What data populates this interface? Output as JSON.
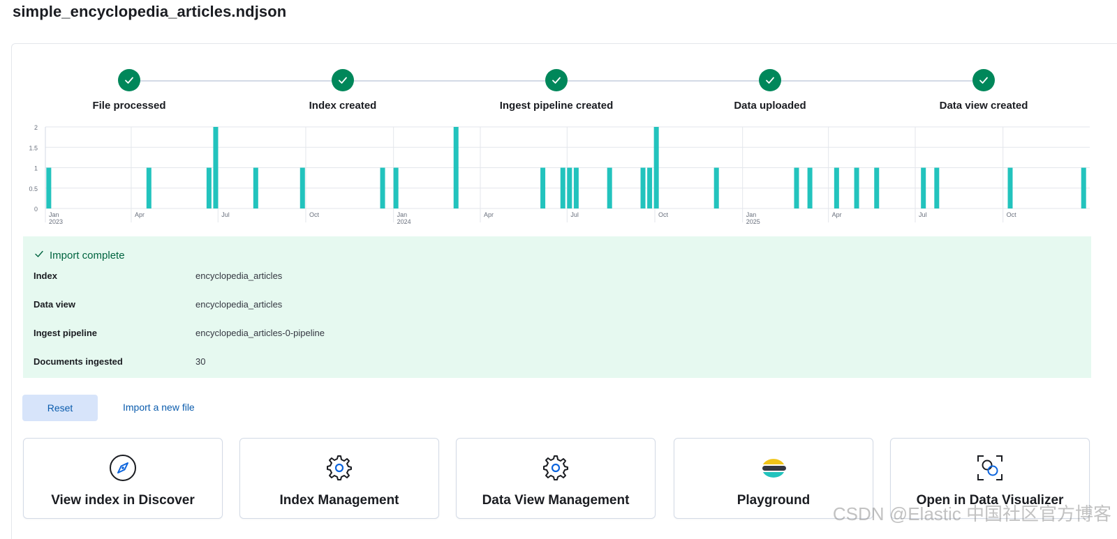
{
  "page_title": "simple_encyclopedia_articles.ndjson",
  "steps": [
    {
      "label": "File processed",
      "status": "complete"
    },
    {
      "label": "Index created",
      "status": "complete"
    },
    {
      "label": "Ingest pipeline created",
      "status": "complete"
    },
    {
      "label": "Data uploaded",
      "status": "complete"
    },
    {
      "label": "Data view created",
      "status": "complete"
    }
  ],
  "chart_data": {
    "type": "bar",
    "x_range": [
      "2023-01-01",
      "2025-12-31"
    ],
    "ylim": [
      0,
      2
    ],
    "y_ticks": [
      "0",
      "0.5",
      "1",
      "1.5",
      "2"
    ],
    "x_ticks": [
      {
        "date": "2023-01-01",
        "label": "Jan",
        "year": "2023"
      },
      {
        "date": "2023-04-01",
        "label": "Apr",
        "year": ""
      },
      {
        "date": "2023-07-01",
        "label": "Jul",
        "year": ""
      },
      {
        "date": "2023-10-01",
        "label": "Oct",
        "year": ""
      },
      {
        "date": "2024-01-01",
        "label": "Jan",
        "year": "2024"
      },
      {
        "date": "2024-04-01",
        "label": "Apr",
        "year": ""
      },
      {
        "date": "2024-07-01",
        "label": "Jul",
        "year": ""
      },
      {
        "date": "2024-10-01",
        "label": "Oct",
        "year": ""
      },
      {
        "date": "2025-01-01",
        "label": "Jan",
        "year": "2025"
      },
      {
        "date": "2025-04-01",
        "label": "Apr",
        "year": ""
      },
      {
        "date": "2025-07-01",
        "label": "Jul",
        "year": ""
      },
      {
        "date": "2025-10-01",
        "label": "Oct",
        "year": ""
      }
    ],
    "bars": [
      {
        "date": "2023-01-02",
        "value": 1
      },
      {
        "date": "2023-04-17",
        "value": 1
      },
      {
        "date": "2023-06-19",
        "value": 1
      },
      {
        "date": "2023-06-26",
        "value": 2
      },
      {
        "date": "2023-08-07",
        "value": 1
      },
      {
        "date": "2023-09-25",
        "value": 1
      },
      {
        "date": "2023-12-18",
        "value": 1
      },
      {
        "date": "2024-01-01",
        "value": 1
      },
      {
        "date": "2024-03-04",
        "value": 2
      },
      {
        "date": "2024-06-03",
        "value": 1
      },
      {
        "date": "2024-06-24",
        "value": 1
      },
      {
        "date": "2024-07-01",
        "value": 1
      },
      {
        "date": "2024-07-08",
        "value": 1
      },
      {
        "date": "2024-08-12",
        "value": 1
      },
      {
        "date": "2024-09-16",
        "value": 1
      },
      {
        "date": "2024-09-23",
        "value": 1
      },
      {
        "date": "2024-09-30",
        "value": 2
      },
      {
        "date": "2024-12-02",
        "value": 1
      },
      {
        "date": "2025-02-24",
        "value": 1
      },
      {
        "date": "2025-03-10",
        "value": 1
      },
      {
        "date": "2025-04-07",
        "value": 1
      },
      {
        "date": "2025-04-28",
        "value": 1
      },
      {
        "date": "2025-05-19",
        "value": 1
      },
      {
        "date": "2025-07-07",
        "value": 1
      },
      {
        "date": "2025-07-21",
        "value": 1
      },
      {
        "date": "2025-10-06",
        "value": 1
      },
      {
        "date": "2025-12-22",
        "value": 1
      }
    ],
    "bar_color": "#22c3bd",
    "grid": true
  },
  "import_result": {
    "title": "Import complete",
    "rows": [
      {
        "key": "Index",
        "value": "encyclopedia_articles"
      },
      {
        "key": "Data view",
        "value": "encyclopedia_articles"
      },
      {
        "key": "Ingest pipeline",
        "value": "encyclopedia_articles-0-pipeline"
      },
      {
        "key": "Documents ingested",
        "value": "30"
      }
    ]
  },
  "actions": {
    "reset_label": "Reset",
    "import_new_label": "Import a new file"
  },
  "cards": [
    {
      "label": "View index in Discover",
      "icon": "compass-icon"
    },
    {
      "label": "Index Management",
      "icon": "gear-icon"
    },
    {
      "label": "Data View Management",
      "icon": "gear-icon"
    },
    {
      "label": "Playground",
      "icon": "elastic-logo-icon"
    },
    {
      "label": "Open in Data Visualizer",
      "icon": "data-visualizer-icon"
    }
  ],
  "watermark": "CSDN @Elastic 中国社区官方博客",
  "colors": {
    "success": "#00875a",
    "callout_bg": "#e6f9f0",
    "link": "#0b5cad",
    "bar": "#22c3bd"
  }
}
